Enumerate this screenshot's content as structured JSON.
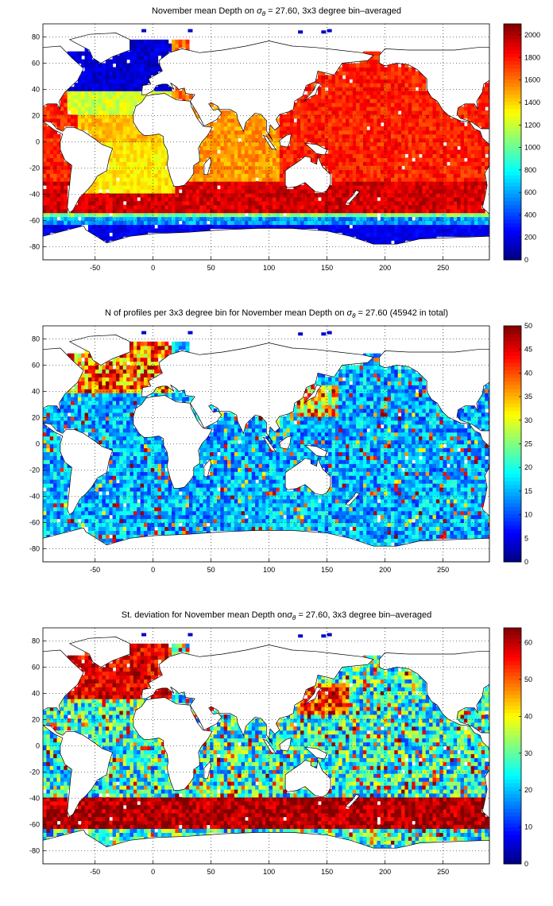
{
  "panels": [
    {
      "title_pre": "November mean Depth on ",
      "title_post": " = 27.60, 3x3 degree bin–averaged",
      "sigma": "σ",
      "sigma_sub": "θ"
    },
    {
      "title_pre": "N of profiles per 3x3 degree bin for November mean Depth on ",
      "title_post": " = 27.60 (45942 in total)",
      "sigma": "σ",
      "sigma_sub": "θ"
    },
    {
      "title_pre": "St. deviation for November mean Depth on",
      "title_post": " = 27.60, 3x3 degree bin–averaged",
      "sigma": "σ",
      "sigma_sub": "θ"
    }
  ],
  "chart_data": [
    {
      "type": "heatmap",
      "title": "November mean Depth on σθ = 27.60, 3x3 degree bin–averaged",
      "xlim": [
        -95,
        290
      ],
      "ylim": [
        -90,
        90
      ],
      "xticks": [
        -50,
        0,
        50,
        100,
        150,
        200,
        250
      ],
      "yticks": [
        -80,
        -60,
        -40,
        -20,
        0,
        20,
        40,
        60,
        80
      ],
      "grid": "dotted",
      "colormap": "jet",
      "colorbar": {
        "min": 0,
        "max": 2100,
        "ticks": [
          0,
          200,
          400,
          600,
          800,
          1000,
          1200,
          1400,
          1600,
          1800,
          2000
        ]
      },
      "field": "depth",
      "representative_values": {
        "subtropical_north_pacific": 1750,
        "south_pacific_40S": 1950,
        "south_atlantic": 1400,
        "north_atlantic": 150,
        "southern_ocean_60S": 800
      }
    },
    {
      "type": "heatmap",
      "title": "N of profiles per 3x3 degree bin for November mean Depth on σθ = 27.60 (45942 in total)",
      "xlim": [
        -95,
        290
      ],
      "ylim": [
        -90,
        90
      ],
      "xticks": [
        -50,
        0,
        50,
        100,
        150,
        200,
        250
      ],
      "yticks": [
        -80,
        -60,
        -40,
        -20,
        0,
        20,
        40,
        60,
        80
      ],
      "grid": "dotted",
      "colormap": "jet",
      "colorbar": {
        "min": 0,
        "max": 50,
        "ticks": [
          0,
          5,
          10,
          15,
          20,
          25,
          30,
          35,
          40,
          45,
          50
        ]
      },
      "field": "count",
      "representative_values": {
        "open_ocean": 10,
        "north_atlantic": 40,
        "kuroshio": 35
      }
    },
    {
      "type": "heatmap",
      "title": "St. deviation for November mean Depth onσθ = 27.60, 3x3 degree bin–averaged",
      "xlim": [
        -95,
        290
      ],
      "ylim": [
        -90,
        90
      ],
      "xticks": [
        -50,
        0,
        50,
        100,
        150,
        200,
        250
      ],
      "yticks": [
        -80,
        -60,
        -40,
        -20,
        0,
        20,
        40,
        60,
        80
      ],
      "grid": "dotted",
      "colormap": "jet",
      "colorbar": {
        "min": 0,
        "max": 64,
        "ticks": [
          0,
          10,
          20,
          30,
          40,
          50,
          60
        ]
      },
      "field": "std",
      "representative_values": {
        "southern_ocean": 64,
        "north_atlantic": 64,
        "tropics": 20
      }
    }
  ]
}
